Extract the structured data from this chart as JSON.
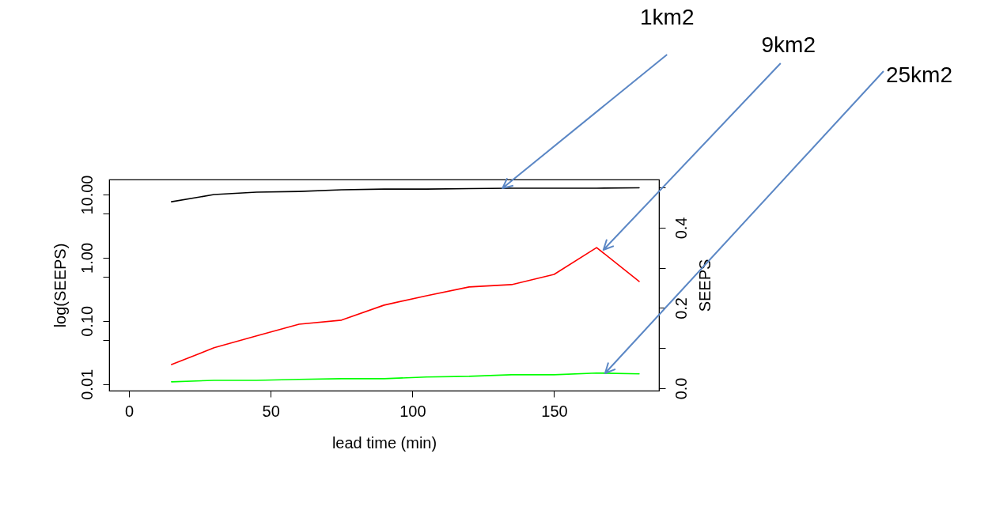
{
  "chart_data": {
    "type": "line",
    "xlabel": "lead time (min)",
    "ylabel": "log(SEEPS)",
    "y2label": "SEEPS",
    "x": [
      15,
      30,
      45,
      60,
      75,
      90,
      105,
      120,
      135,
      150,
      165,
      180
    ],
    "series": [
      {
        "color": "#000000",
        "values": [
          7.7,
          10,
          10.9,
          11.2,
          11.9,
          12.2,
          12.2,
          12.4,
          12.6,
          12.6,
          12.6,
          12.8
        ]
      },
      {
        "color": "#ff0000",
        "values": [
          0.0205,
          0.0376,
          0.058,
          0.089,
          0.103,
          0.178,
          0.251,
          0.345,
          0.376,
          0.546,
          1.45,
          0.422
        ]
      },
      {
        "color": "#00ff00",
        "values": [
          0.0109,
          0.0115,
          0.0115,
          0.0119,
          0.0122,
          0.0122,
          0.013,
          0.0133,
          0.0141,
          0.0141,
          0.015,
          0.0146
        ]
      }
    ],
    "xlim": [
      -7,
      187
    ],
    "xticks": [
      0,
      50,
      100,
      150
    ],
    "log": "y",
    "ylim": [
      0.0079,
      17.3
    ],
    "yticks": [
      {
        "value": 0.01,
        "label": "0.01"
      },
      {
        "value": 0.05,
        "label": null
      },
      {
        "value": 0.1,
        "label": "0.10"
      },
      {
        "value": 0.5,
        "label": null
      },
      {
        "value": 1,
        "label": "1.00"
      },
      {
        "value": 5,
        "label": null
      },
      {
        "value": 10,
        "label": "10.00"
      }
    ],
    "y2lim": [
      -0.006,
      0.52
    ],
    "y2ticks": [
      {
        "value": 0,
        "label": "0.0"
      },
      {
        "value": 0.1,
        "label": null
      },
      {
        "value": 0.2,
        "label": "0.2"
      },
      {
        "value": 0.3,
        "label": null
      },
      {
        "value": 0.4,
        "label": "0.4"
      },
      {
        "value": 0.5,
        "label": null
      }
    ],
    "grid": false,
    "line_style": "solid",
    "marker": "none",
    "annotations": [
      {
        "text": "1km2",
        "x": 131.8,
        "y": 12.6
      },
      {
        "text": "9km2",
        "x": 167.4,
        "y": 1.33
      },
      {
        "text": "25km2",
        "x": 168,
        "y": 0.0149
      }
    ]
  }
}
